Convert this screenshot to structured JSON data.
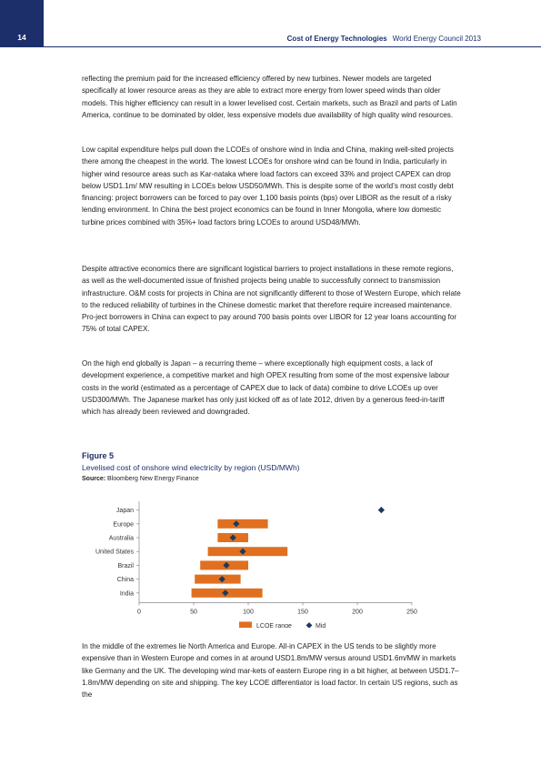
{
  "header": {
    "page_number": "14",
    "doc_title": "Cost of Energy Technologies",
    "org": "World Energy Council 2013"
  },
  "paragraphs": [
    "reflecting the premium paid for the increased efficiency offered by new turbines. Newer models are targeted specifically at lower resource areas as they are able to extract more energy from lower speed winds than older models. This higher efficiency can result in a lower levelised cost. Certain markets, such as Brazil and parts of Latin America, continue to be dominated by older, less expensive models due availability of high quality wind resources.",
    "Low capital expenditure helps pull down the LCOEs of onshore wind in India and China, making well-sited projects there among the cheapest in the world. The lowest LCOEs for onshore wind can be found in India, particularly in higher wind resource areas such as Kar-nataka where load factors can exceed 33% and project CAPEX can drop below USD1.1m/ MW resulting in LCOEs below USD50/MWh. This is despite some of the world’s most costly debt financing: project borrowers can be forced to pay over 1,100 basis points (bps) over LIBOR as the result of a risky lending environment. In China the best project economics can be found in Inner Mongolia, where low domestic turbine prices combined with 35%+ load factors bring LCOEs to around USD48/MWh.",
    "Despite attractive economics there are significant logistical barriers to project installations in these remote regions, as well as the well-documented issue of finished projects being unable to successfully connect to transmission infrastructure. O&M costs for projects in China are not significantly different to those of Western Europe, which relate to the reduced reliability of turbines in the Chinese domestic market that therefore require increased maintenance. Pro-ject borrowers in China can expect to pay around 700 basis points over LIBOR for 12 year loans accounting for 75% of total CAPEX.",
    "On the high end globally is Japan – a recurring theme – where exceptionally high equipment costs, a lack of development experience, a competitive market and high OPEX resulting from some of the most expensive labour costs in the world (estimated as a percentage of CAPEX due to lack of data) combine to drive LCOEs up over USD300/MWh. The Japanese market has only just kicked off as of late 2012, driven by a generous feed-in-tariff which has already been reviewed and downgraded.",
    "In the middle of the extremes lie North America and Europe. All-in CAPEX in the US tends to be slightly more expensive than in Western Europe and comes in at around USD1.8m/MW versus around USD1.6m/MW in markets like Germany and the UK. The developing wind mar-kets of eastern Europe ring in a bit higher, at between USD1.7–1.8m/MW depending on site and shipping. The key LCOE differentiator is load factor. In certain US regions, such as the"
  ],
  "figure": {
    "label": "Figure 5",
    "title": "Levelised cost of onshore wind electricity by region (USD/MWh)",
    "source_label": "Source:",
    "source_text": "Bloomberg New Energy Finance"
  },
  "chart_data": {
    "type": "bar",
    "orientation": "horizontal-floating-range",
    "categories": [
      "Japan",
      "Europe",
      "Australia",
      "United States",
      "Brazil",
      "China",
      "India"
    ],
    "series": [
      {
        "name": "LCOE range",
        "color": "#e07020",
        "low": [
          null,
          72,
          72,
          63,
          56,
          51,
          48
        ],
        "high": [
          null,
          118,
          100,
          136,
          100,
          93,
          113
        ]
      },
      {
        "name": "Mid",
        "color": "#1c3a5e",
        "values": [
          222,
          89,
          86,
          95,
          80,
          76,
          79
        ]
      }
    ],
    "xlim": [
      0,
      250
    ],
    "xticks": [
      0,
      50,
      100,
      150,
      200,
      250
    ],
    "xtick_labels": [
      "0",
      "50",
      "100",
      "150",
      "200",
      "250"
    ],
    "legend_position": "bottom-center",
    "grid": false
  }
}
